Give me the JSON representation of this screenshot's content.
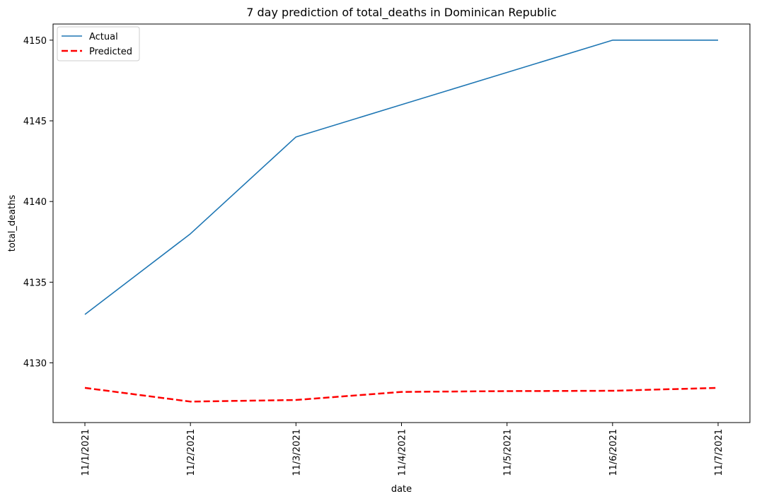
{
  "chart_data": {
    "type": "line",
    "title": "7 day prediction of total_deaths in Dominican Republic",
    "xlabel": "date",
    "ylabel": "total_deaths",
    "categories": [
      "11/1/2021",
      "11/2/2021",
      "11/3/2021",
      "11/4/2021",
      "11/5/2021",
      "11/6/2021",
      "11/7/2021"
    ],
    "ylim": [
      4126.3,
      4151.0
    ],
    "yticks": [
      4130,
      4135,
      4140,
      4145,
      4150
    ],
    "grid": false,
    "legend_position": "top-left",
    "series": [
      {
        "name": "Actual",
        "color": "#1f77b4",
        "style": "solid",
        "values": [
          4133,
          4138,
          4144,
          4146,
          4148,
          4150,
          4150
        ]
      },
      {
        "name": "Predicted",
        "color": "#ff0000",
        "style": "dashed",
        "values": [
          4128.45,
          4127.6,
          4127.7,
          4128.2,
          4128.25,
          4128.27,
          4128.45
        ]
      }
    ]
  }
}
